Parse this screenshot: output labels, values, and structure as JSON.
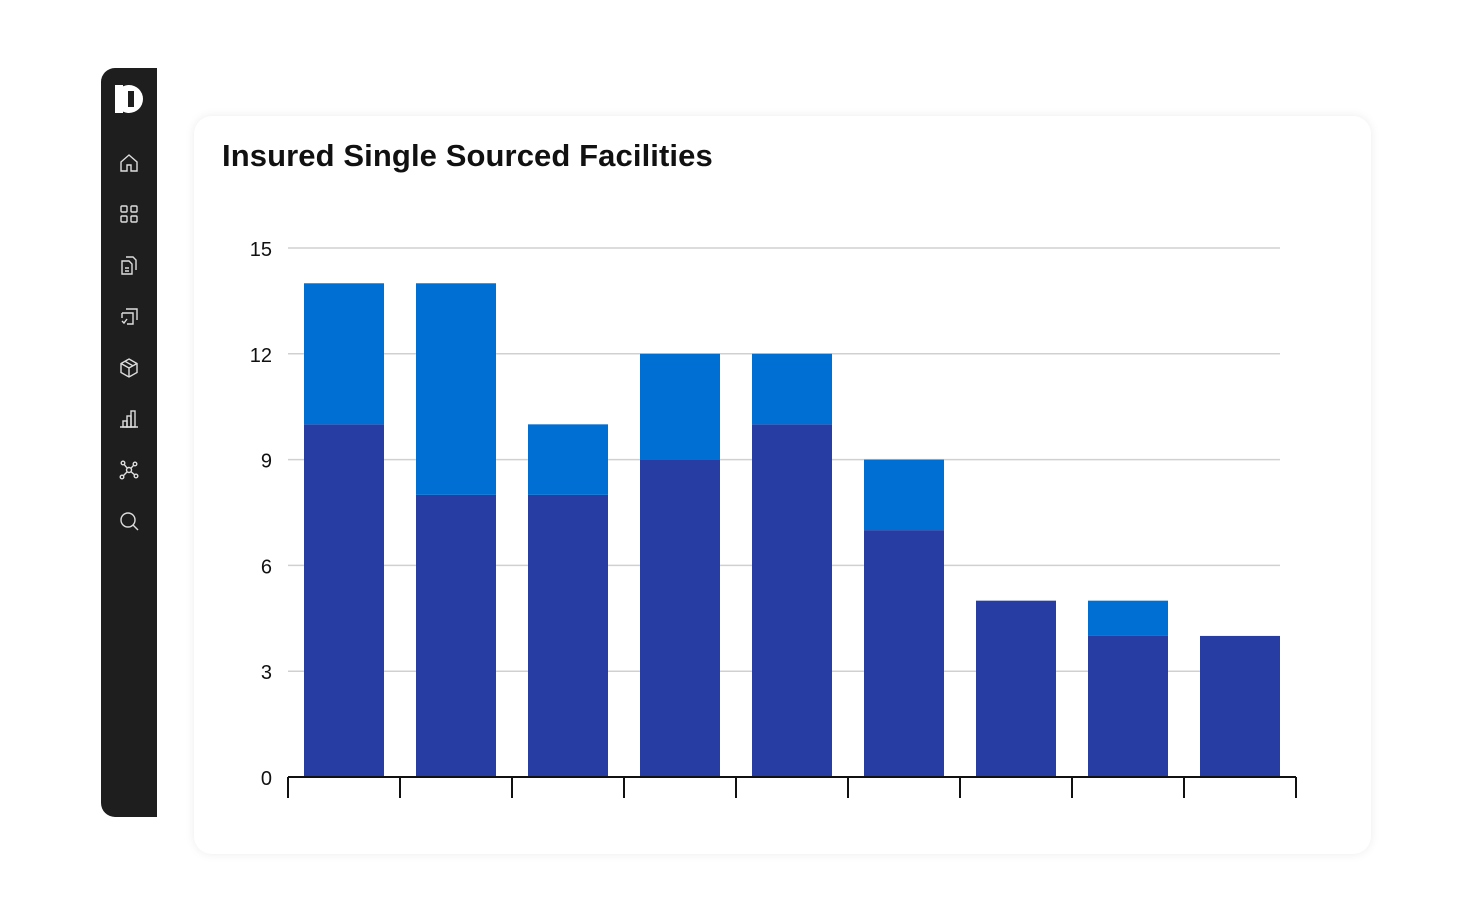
{
  "sidebar": {
    "logo": "brand-logo",
    "items": [
      {
        "icon": "home-icon"
      },
      {
        "icon": "grid-icon"
      },
      {
        "icon": "documents-icon"
      },
      {
        "icon": "task-check-icon"
      },
      {
        "icon": "package-icon"
      },
      {
        "icon": "bar-chart-icon"
      },
      {
        "icon": "network-icon"
      },
      {
        "icon": "search-icon"
      }
    ]
  },
  "card": {
    "title": "Insured Single Sourced Facilities"
  },
  "chart_data": {
    "type": "bar",
    "stacked": true,
    "title": "Insured Single Sourced Facilities",
    "xlabel": "",
    "ylabel": "",
    "ylim": [
      0,
      15
    ],
    "yticks": [
      0,
      3,
      6,
      9,
      12,
      15
    ],
    "grid": true,
    "categories": [
      "",
      "",
      "",
      "",
      "",
      "",
      "",
      "",
      ""
    ],
    "series": [
      {
        "color": "#273da4",
        "values": [
          10,
          8,
          8,
          9,
          10,
          7,
          5,
          4,
          4
        ]
      },
      {
        "color": "#006fd3",
        "values": [
          4,
          6,
          2,
          3,
          2,
          2,
          0,
          1,
          0
        ]
      }
    ]
  }
}
